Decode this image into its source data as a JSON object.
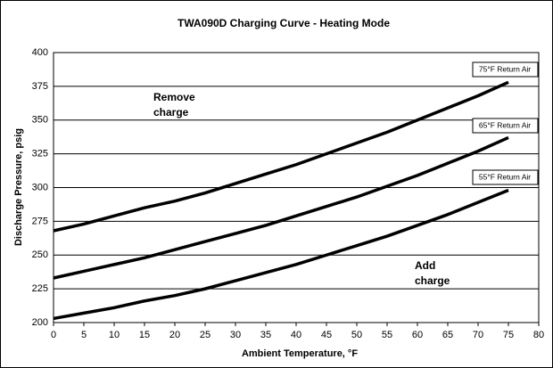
{
  "chart_data": {
    "type": "line",
    "title": "TWA090D Charging Curve - Heating Mode",
    "x_label": "Ambient Temperature, °F",
    "y_label": "Discharge Pressure, psig",
    "x": [
      0,
      5,
      10,
      15,
      20,
      25,
      30,
      35,
      40,
      45,
      50,
      55,
      60,
      65,
      70,
      75
    ],
    "series": [
      {
        "name": "75°F Return Air",
        "color": "#000000",
        "values": [
          268,
          273,
          279,
          285,
          290,
          296,
          303,
          310,
          317,
          325,
          333,
          341,
          350,
          359,
          368,
          378
        ]
      },
      {
        "name": "65°F Return Air",
        "color": "#000000",
        "values": [
          233,
          238,
          243,
          248,
          254,
          260,
          266,
          272,
          279,
          286,
          293,
          301,
          309,
          318,
          327,
          337
        ]
      },
      {
        "name": "55°F Return Air",
        "color": "#000000",
        "values": [
          203,
          207,
          211,
          216,
          220,
          225,
          231,
          237,
          243,
          250,
          257,
          264,
          272,
          280,
          289,
          298
        ]
      }
    ],
    "annotations": [
      {
        "text": "Remove charge"
      },
      {
        "text": "Add charge"
      }
    ],
    "xlim": [
      0,
      80
    ],
    "xticks": [
      0,
      5,
      10,
      15,
      20,
      25,
      30,
      35,
      40,
      45,
      50,
      55,
      60,
      65,
      70,
      75,
      80
    ],
    "ylim": [
      200,
      400
    ],
    "yticks": [
      200,
      225,
      250,
      275,
      300,
      325,
      350,
      375,
      400
    ],
    "grid": true
  }
}
